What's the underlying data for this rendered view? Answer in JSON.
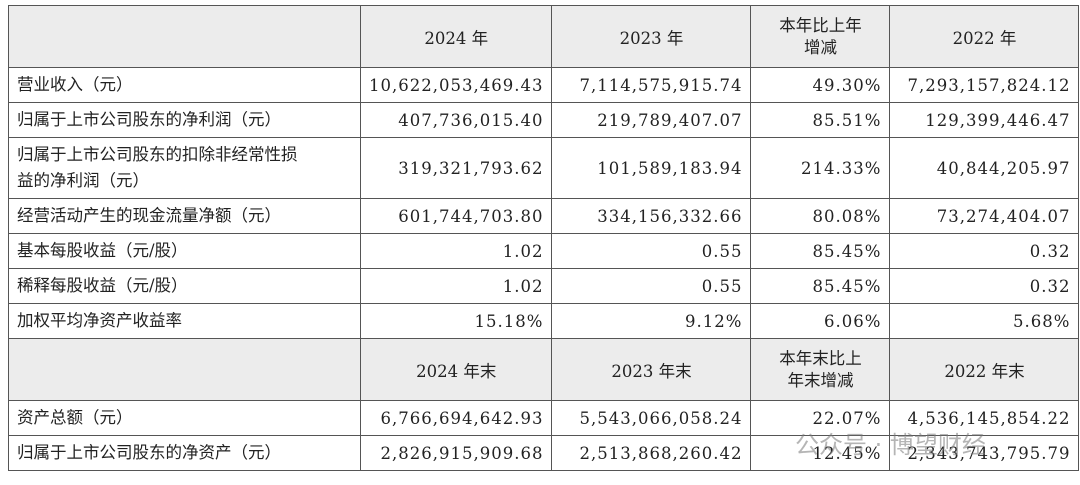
{
  "table1": {
    "header": [
      "",
      "2024 年",
      "2023 年",
      "本年比上年增减",
      "2022 年"
    ],
    "rows": [
      [
        "营业收入（元）",
        "10,622,053,469.43",
        "7,114,575,915.74",
        "49.30%",
        "7,293,157,824.12"
      ],
      [
        "归属于上市公司股东的净利润（元）",
        "407,736,015.40",
        "219,789,407.07",
        "85.51%",
        "129,399,446.47"
      ],
      [
        "归属于上市公司股东的扣除非经常性损益的净利润（元）",
        "319,321,793.62",
        "101,589,183.94",
        "214.33%",
        "40,844,205.97"
      ],
      [
        "经营活动产生的现金流量净额（元）",
        "601,744,703.80",
        "334,156,332.66",
        "80.08%",
        "73,274,404.07"
      ],
      [
        "基本每股收益（元/股）",
        "1.02",
        "0.55",
        "85.45%",
        "0.32"
      ],
      [
        "稀释每股收益（元/股）",
        "1.02",
        "0.55",
        "85.45%",
        "0.32"
      ],
      [
        "加权平均净资产收益率",
        "15.18%",
        "9.12%",
        "6.06%",
        "5.68%"
      ]
    ]
  },
  "table2": {
    "header": [
      "",
      "2024 年末",
      "2023 年末",
      "本年末比上年末增减",
      "2022 年末"
    ],
    "rows": [
      [
        "资产总额（元）",
        "6,766,694,642.93",
        "5,543,066,058.24",
        "22.07%",
        "4,536,145,854.22"
      ],
      [
        "归属于上市公司股东的净资产（元）",
        "2,826,915,909.68",
        "2,513,868,260.42",
        "12.45%",
        "2,343,743,795.79"
      ]
    ]
  },
  "watermark": "公众号 · 博望财经"
}
